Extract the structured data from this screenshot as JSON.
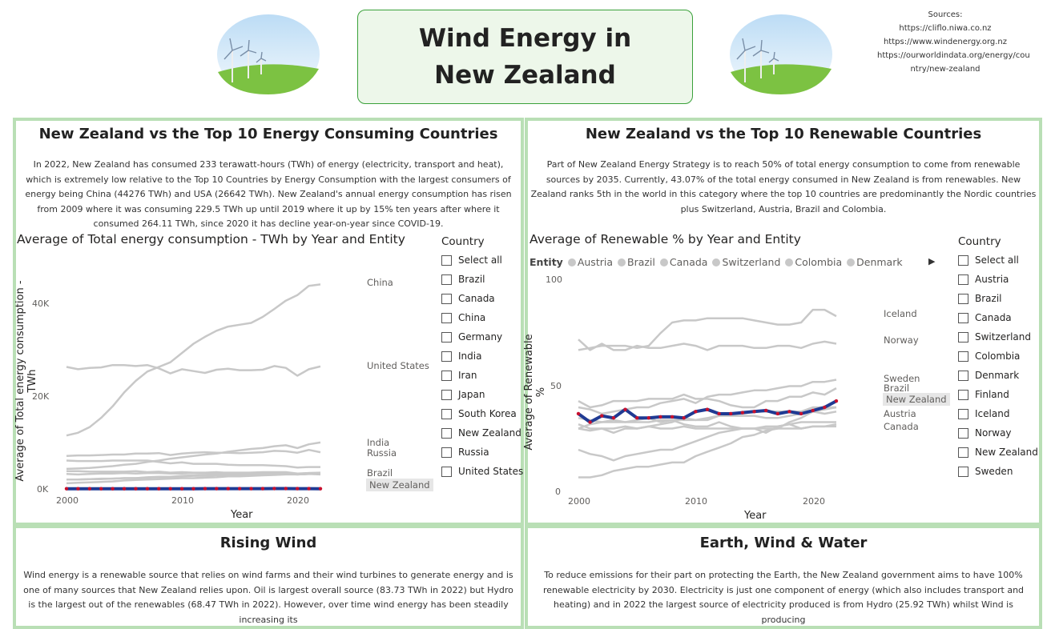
{
  "header": {
    "title_line1": "Wind Energy in",
    "title_line2": "New Zealand",
    "sources_label": "Sources:",
    "sources": [
      "https://cliflo.niwa.co.nz",
      "https://www.windenergy.org.nz",
      "https://ourworldindata.org/energy/cou",
      "ntry/new-zealand"
    ]
  },
  "panel_consumption": {
    "title": "New Zealand vs the Top 10 Energy Consuming Countries",
    "text": "In 2022, New Zealand has consumed 233 terawatt-hours (TWh) of energy (electricity, transport and heat), which is extremely low relative to the Top 10 Countries by Energy Consumption with the largest consumers of energy being China (44276 TWh) and USA (26642 TWh). New Zealand's annual energy consumption has risen from 2009 where it was consuming 229.5 TWh up until 2019 where it up by 15% ten years after where it consumed 264.11 TWh, since 2020 it has decline year-on-year since COVID-19.",
    "slicer": {
      "title": "Country",
      "items": [
        "Select all",
        "Brazil",
        "Canada",
        "China",
        "Germany",
        "India",
        "Iran",
        "Japan",
        "South Korea",
        "New Zealand",
        "Russia",
        "United States"
      ]
    }
  },
  "panel_renewable": {
    "title": "New Zealand vs the Top 10 Renewable Countries",
    "text": "Part of New Zealand Energy Strategy is to reach 50% of total energy consumption to come from renewable sources by 2035. Currently, 43.07% of the total energy consumed in New Zealand is from renewables. New Zealand ranks 5th in the world in this category where the top 10 countries are predominantly the Nordic countries plus Switzerland, Austria, Brazil and Colombia.",
    "legend_title": "Entity",
    "legend_items": [
      "Austria",
      "Brazil",
      "Canada",
      "Switzerland",
      "Colombia",
      "Denmark"
    ],
    "slicer": {
      "title": "Country",
      "items": [
        "Select all",
        "Austria",
        "Brazil",
        "Canada",
        "Switzerland",
        "Colombia",
        "Denmark",
        "Finland",
        "Iceland",
        "Norway",
        "New Zealand",
        "Sweden"
      ]
    }
  },
  "panel_wind": {
    "title": "Rising Wind",
    "text": "Wind energy is a renewable source that relies on wind farms and their wind turbines to generate energy and is one of many sources that New Zealand relies upon. Oil is largest overall source (83.73 TWh in 2022) but Hydro is the largest out of the renewables (68.47 TWh in 2022). However, over time wind energy has been steadily increasing its"
  },
  "panel_earth": {
    "title": "Earth, Wind & Water",
    "text": "To reduce emissions for their part on protecting the Earth, the New Zealand government aims to have 100% renewable electricity by 2030. Electricity is just one component of energy (which also includes transport and heating) and in 2022 the largest source of electricity produced is from Hydro (25.92 TWh) whilst Wind is producing"
  },
  "chart_data": [
    {
      "type": "line",
      "title": "Average of Total energy consumption - TWh by Year and Entity",
      "xlabel": "Year",
      "ylabel": "Average of Total energy consumption - TWh",
      "x_ticks": [
        "2000",
        "2010",
        "2020"
      ],
      "y_ticks": [
        "0K",
        "20K",
        "40K"
      ],
      "xlim": [
        2000,
        2022
      ],
      "ylim": [
        0,
        48
      ],
      "units": "thousand TWh",
      "highlight": "New Zealand",
      "highlight_color": "#1f3a93",
      "highlight_dot": "#c8102e",
      "end_labels": [
        "China",
        "United States",
        "India",
        "Russia",
        "Brazil",
        "New Zealand"
      ],
      "series": [
        {
          "name": "China",
          "values": [
            11.7,
            12.3,
            13.5,
            15.5,
            18,
            21,
            23.5,
            25.5,
            26.5,
            27.5,
            29.5,
            31.5,
            33,
            34.3,
            35.2,
            35.6,
            36,
            37.3,
            39,
            40.8,
            42,
            44,
            44.3
          ]
        },
        {
          "name": "United States",
          "values": [
            26.5,
            26,
            26.3,
            26.4,
            26.9,
            26.9,
            26.7,
            26.9,
            26.2,
            25.1,
            26,
            25.6,
            25.2,
            25.9,
            26.1,
            25.8,
            25.8,
            25.9,
            26.7,
            26.3,
            24.6,
            26,
            26.6
          ]
        },
        {
          "name": "India",
          "values": [
            4.5,
            4.6,
            4.7,
            4.9,
            5.1,
            5.4,
            5.6,
            6,
            6.3,
            6.7,
            7,
            7.3,
            7.6,
            7.8,
            8.2,
            8.5,
            8.8,
            9,
            9.4,
            9.6,
            9,
            9.8,
            10.2
          ]
        },
        {
          "name": "Russia",
          "values": [
            7.3,
            7.4,
            7.4,
            7.5,
            7.6,
            7.6,
            7.8,
            7.8,
            7.9,
            7.5,
            7.8,
            8,
            8.1,
            8,
            8,
            7.9,
            8,
            8.1,
            8.4,
            8.3,
            8,
            8.6,
            8.1
          ]
        },
        {
          "name": "Japan",
          "values": [
            6.3,
            6.2,
            6.2,
            6.2,
            6.3,
            6.3,
            6.3,
            6.3,
            6,
            5.7,
            5.9,
            5.6,
            5.6,
            5.6,
            5.4,
            5.3,
            5.3,
            5.3,
            5.2,
            5.1,
            4.8,
            4.9,
            4.9
          ]
        },
        {
          "name": "Germany",
          "values": [
            4,
            4,
            3.9,
            3.9,
            3.9,
            3.9,
            4,
            3.8,
            3.9,
            3.7,
            3.8,
            3.7,
            3.7,
            3.8,
            3.6,
            3.6,
            3.7,
            3.7,
            3.6,
            3.5,
            3.3,
            3.4,
            3.3
          ]
        },
        {
          "name": "Canada",
          "values": [
            3.4,
            3.3,
            3.4,
            3.5,
            3.5,
            3.6,
            3.5,
            3.6,
            3.6,
            3.5,
            3.5,
            3.6,
            3.6,
            3.7,
            3.7,
            3.7,
            3.7,
            3.8,
            3.8,
            3.8,
            3.5,
            3.6,
            3.7
          ]
        },
        {
          "name": "Brazil",
          "values": [
            2.2,
            2.2,
            2.3,
            2.3,
            2.4,
            2.5,
            2.5,
            2.7,
            2.8,
            2.8,
            3,
            3.1,
            3.2,
            3.4,
            3.4,
            3.4,
            3.3,
            3.4,
            3.4,
            3.5,
            3.4,
            3.6,
            3.6
          ]
        },
        {
          "name": "Iran",
          "values": [
            1.4,
            1.5,
            1.6,
            1.7,
            1.8,
            2,
            2.1,
            2.2,
            2.3,
            2.4,
            2.5,
            2.5,
            2.6,
            2.7,
            2.9,
            2.9,
            3,
            3.1,
            3.2,
            3.3,
            3.3,
            3.4,
            3.4
          ]
        },
        {
          "name": "South Korea",
          "values": [
            2.2,
            2.2,
            2.3,
            2.4,
            2.4,
            2.5,
            2.5,
            2.6,
            2.7,
            2.7,
            2.9,
            3,
            3,
            3.1,
            3.1,
            3.2,
            3.3,
            3.4,
            3.4,
            3.4,
            3.3,
            3.4,
            3.4
          ]
        },
        {
          "name": "New Zealand",
          "values": [
            0.22,
            0.22,
            0.22,
            0.22,
            0.22,
            0.22,
            0.23,
            0.23,
            0.23,
            0.23,
            0.23,
            0.23,
            0.24,
            0.24,
            0.24,
            0.25,
            0.25,
            0.25,
            0.26,
            0.26,
            0.25,
            0.24,
            0.23
          ]
        }
      ]
    },
    {
      "type": "line",
      "title": "Average of Renewable % by Year and Entity",
      "xlabel": "Year",
      "ylabel": "Average of Renewable %",
      "x_ticks": [
        "2000",
        "2010",
        "2020"
      ],
      "y_ticks": [
        "0",
        "50",
        "100"
      ],
      "xlim": [
        2000,
        2022
      ],
      "ylim": [
        0,
        100
      ],
      "highlight": "New Zealand",
      "highlight_color": "#1f3a93",
      "highlight_dot": "#c8102e",
      "end_labels": [
        "Iceland",
        "Norway",
        "Sweden",
        "Brazil",
        "New Zealand",
        "Austria",
        "Canada"
      ],
      "series": [
        {
          "name": "Iceland",
          "values": [
            67,
            68,
            69,
            69,
            69,
            68,
            69,
            75,
            80,
            81,
            81,
            82,
            82,
            82,
            82,
            81,
            80,
            79,
            79,
            80,
            86,
            86,
            83
          ]
        },
        {
          "name": "Norway",
          "values": [
            72,
            67,
            70,
            67,
            67,
            69,
            68,
            68,
            69,
            70,
            69,
            67,
            69,
            69,
            69,
            68,
            68,
            69,
            69,
            68,
            70,
            71,
            70
          ]
        },
        {
          "name": "Sweden",
          "values": [
            40,
            39,
            37,
            38,
            39,
            40,
            40,
            42,
            43,
            44,
            42,
            45,
            46,
            46,
            47,
            48,
            48,
            49,
            50,
            50,
            52,
            52,
            53
          ]
        },
        {
          "name": "Brazil",
          "values": [
            43,
            40,
            41,
            43,
            43,
            43,
            44,
            44,
            44,
            46,
            44,
            44,
            43,
            41,
            40,
            40,
            43,
            43,
            45,
            45,
            47,
            46,
            49
          ]
        },
        {
          "name": "Austria",
          "values": [
            32,
            30,
            30,
            28,
            30,
            30,
            31,
            32,
            33,
            35,
            34,
            34,
            36,
            36,
            36,
            36,
            35,
            35,
            36,
            37,
            38,
            37,
            38
          ]
        },
        {
          "name": "Canada",
          "values": [
            30,
            29,
            30,
            30,
            31,
            30,
            31,
            30,
            30,
            31,
            30,
            30,
            30,
            30,
            30,
            30,
            30,
            30,
            30,
            30,
            31,
            31,
            31
          ]
        },
        {
          "name": "Switzerland",
          "values": [
            35,
            34,
            33,
            33,
            33,
            33,
            33,
            34,
            34,
            34,
            34,
            35,
            36,
            37,
            37,
            38,
            38,
            38,
            38,
            38,
            40,
            40,
            40
          ]
        },
        {
          "name": "Colombia",
          "values": [
            30,
            32,
            33,
            34,
            33,
            34,
            35,
            33,
            34,
            32,
            31,
            31,
            33,
            31,
            30,
            30,
            28,
            31,
            32,
            30,
            31,
            31,
            32
          ]
        },
        {
          "name": "Denmark",
          "values": [
            7,
            7,
            8,
            10,
            11,
            12,
            12,
            13,
            14,
            14,
            17,
            19,
            21,
            23,
            26,
            27,
            29,
            30,
            33,
            35,
            38,
            39,
            40
          ]
        },
        {
          "name": "Finland",
          "values": [
            20,
            18,
            17,
            15,
            17,
            18,
            19,
            20,
            20,
            22,
            24,
            26,
            28,
            29,
            30,
            30,
            31,
            31,
            32,
            33,
            33,
            33,
            33
          ]
        },
        {
          "name": "New Zealand",
          "values": [
            37,
            33,
            36,
            35,
            39,
            35,
            35,
            35.5,
            35.5,
            35,
            38,
            39,
            37,
            37,
            37.5,
            38,
            38.5,
            37,
            38,
            37,
            38.5,
            40,
            43
          ]
        }
      ]
    }
  ]
}
